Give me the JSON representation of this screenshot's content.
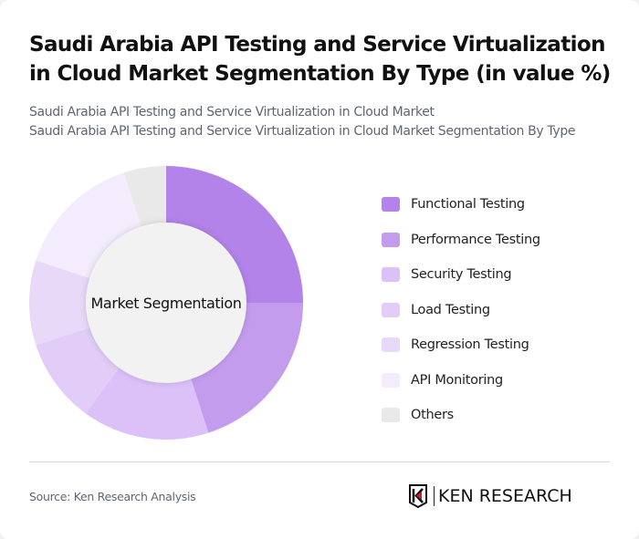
{
  "header": {
    "title": "Saudi Arabia API Testing and Service Virtualization in Cloud Market Segmentation By Type (in value %)",
    "subtitle_line1": "Saudi Arabia API Testing and Service Virtualization in Cloud Market",
    "subtitle_line2": "Saudi Arabia API Testing and Service Virtualization in Cloud Market Segmentation By Type"
  },
  "chart": {
    "center_label": "Market Segmentation"
  },
  "legend": [
    {
      "label": "Functional Testing",
      "color": "#b383ea"
    },
    {
      "label": "Performance Testing",
      "color": "#c49cee"
    },
    {
      "label": "Security Testing",
      "color": "#dbc1f7"
    },
    {
      "label": "Load Testing",
      "color": "#e1cdf7"
    },
    {
      "label": "Regression Testing",
      "color": "#e8d9f9"
    },
    {
      "label": "API Monitoring",
      "color": "#f3ecfc"
    },
    {
      "label": "Others",
      "color": "#e9e9e9"
    }
  ],
  "footer": {
    "source": "Source: Ken Research Analysis",
    "logo_text": "KEN RESEARCH"
  },
  "chart_data": {
    "type": "pie",
    "title": "Saudi Arabia API Testing and Service Virtualization in Cloud Market Segmentation By Type (in value %)",
    "subtitle": "Saudi Arabia API Testing and Service Virtualization in Cloud Market Segmentation By Type",
    "donut": true,
    "center_label": "Market Segmentation",
    "categories": [
      "Functional Testing",
      "Performance Testing",
      "Security Testing",
      "Load Testing",
      "Regression Testing",
      "API Monitoring",
      "Others"
    ],
    "values": [
      25,
      20,
      15,
      10,
      10,
      15,
      5
    ],
    "colors": [
      "#b383ea",
      "#c49cee",
      "#dbc1f7",
      "#e1cdf7",
      "#e8d9f9",
      "#f3ecfc",
      "#e9e9e9"
    ],
    "unit": "%",
    "legend_position": "right",
    "source": "Ken Research Analysis"
  }
}
